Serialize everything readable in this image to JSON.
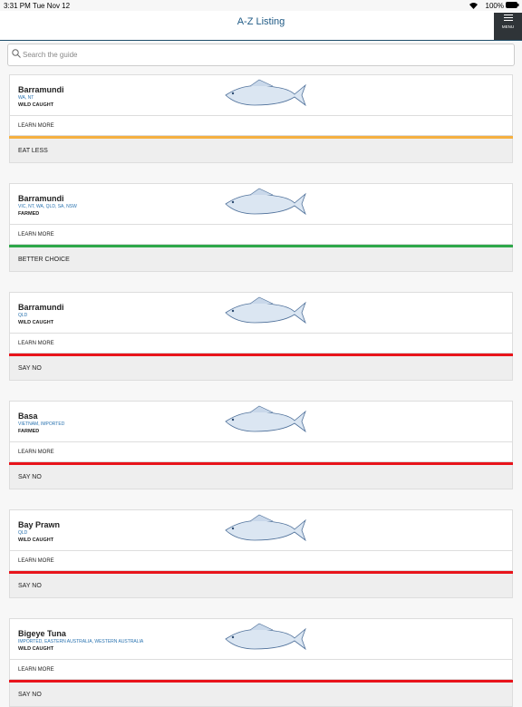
{
  "status_bar": {
    "time": "3:31 PM",
    "date": "Tue Nov 12",
    "battery": "100%"
  },
  "header": {
    "title": "A-Z Listing",
    "menu": "MENU"
  },
  "search": {
    "placeholder": "Search the guide"
  },
  "items": [
    {
      "name": "Barramundi",
      "region": "WA, NT",
      "method": "WILD CAUGHT",
      "link": "LEARN MORE",
      "rating": "EAT LESS",
      "rating_color": "#f5b041"
    },
    {
      "name": "Barramundi",
      "region": "VIC, NT, WA, QLD, SA, NSW",
      "method": "FARMED",
      "link": "LEARN MORE",
      "rating": "BETTER CHOICE",
      "rating_color": "#2ea84a"
    },
    {
      "name": "Barramundi",
      "region": "QLD",
      "method": "WILD CAUGHT",
      "link": "LEARN MORE",
      "rating": "SAY NO",
      "rating_color": "#e8141b"
    },
    {
      "name": "Basa",
      "region": "VIETNAM, IMPORTED",
      "method": "FARMED",
      "link": "LEARN MORE",
      "rating": "SAY NO",
      "rating_color": "#e8141b"
    },
    {
      "name": "Bay Prawn",
      "region": "QLD",
      "method": "WILD CAUGHT",
      "link": "LEARN MORE",
      "rating": "SAY NO",
      "rating_color": "#e8141b"
    },
    {
      "name": "Bigeye Tuna",
      "region": "IMPORTED, EASTERN AUSTRALIA, WESTERN AUSTRALIA",
      "method": "WILD CAUGHT",
      "link": "LEARN MORE",
      "rating": "SAY NO",
      "rating_color": "#e8141b"
    }
  ]
}
